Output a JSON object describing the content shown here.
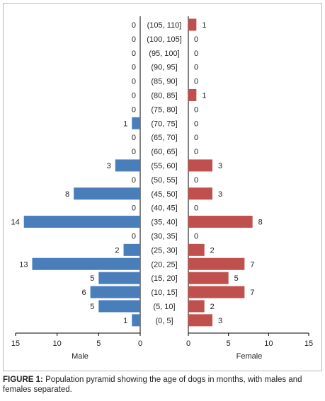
{
  "chart_data": {
    "type": "bar",
    "orientation": "horizontal",
    "subtype": "population-pyramid",
    "categories": [
      "(0, 5]",
      "(5, 10]",
      "(10, 15]",
      "(15, 20]",
      "(20, 25]",
      "(25, 30]",
      "(30, 35]",
      "(35, 40]",
      "(40, 45]",
      "(45, 50]",
      "(50, 55]",
      "(55, 60]",
      "(60, 65]",
      "(65, 70]",
      "(70, 75]",
      "(75, 80]",
      "(80, 85]",
      "(85, 90]",
      "(90, 95]",
      "(95, 100]",
      "(100, 105]",
      "(105, 110]"
    ],
    "series": [
      {
        "name": "Male",
        "color": "#4a7ebb",
        "values": [
          1,
          5,
          6,
          5,
          13,
          2,
          0,
          14,
          0,
          8,
          0,
          3,
          0,
          0,
          1,
          0,
          0,
          0,
          0,
          0,
          0,
          0
        ]
      },
      {
        "name": "Female",
        "color": "#c0504d",
        "values": [
          3,
          2,
          7,
          5,
          7,
          2,
          0,
          8,
          0,
          3,
          0,
          3,
          0,
          0,
          0,
          0,
          1,
          0,
          0,
          0,
          0,
          1
        ]
      }
    ],
    "male_axis": {
      "label": "Male",
      "ticks": [
        "15",
        "10",
        "5",
        "0"
      ],
      "range": [
        15,
        0
      ]
    },
    "female_axis": {
      "label": "Female",
      "ticks": [
        "0",
        "5",
        "10",
        "15"
      ],
      "range": [
        0,
        15
      ]
    },
    "grid": false,
    "legend": "none"
  },
  "caption": {
    "figure_label": "FIGURE 1:",
    "text": " Population pyramid showing the age of dogs in months, with males and females separated."
  }
}
